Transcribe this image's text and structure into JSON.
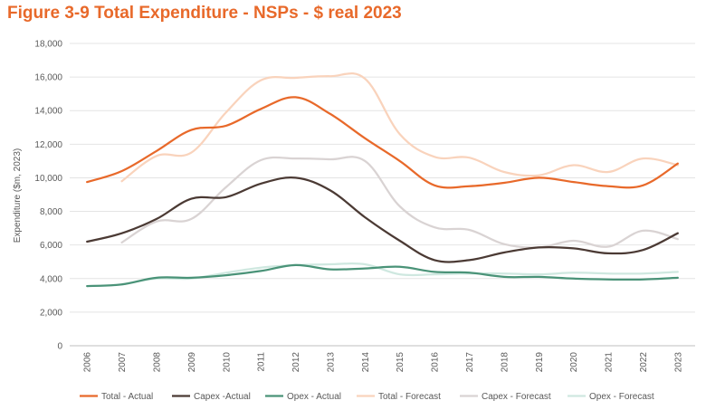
{
  "chart_data": {
    "type": "line",
    "title": "Figure 3-9 Total Expenditure - NSPs - $ real 2023",
    "xlabel": "",
    "ylabel": "Expenditure ($m, 2023)",
    "ylim": [
      0,
      18000
    ],
    "yticks": [
      0,
      2000,
      4000,
      6000,
      8000,
      10000,
      12000,
      14000,
      16000,
      18000
    ],
    "ytick_labels": [
      "0",
      "2,000",
      "4,000",
      "6,000",
      "8,000",
      "10,000",
      "12,000",
      "14,000",
      "16,000",
      "18,000"
    ],
    "grid": true,
    "legend_position": "bottom",
    "categories": [
      "2006",
      "2007",
      "2008",
      "2009",
      "2010",
      "2011",
      "2012",
      "2013",
      "2014",
      "2015",
      "2016",
      "2017",
      "2018",
      "2019",
      "2020",
      "2021",
      "2022",
      "2023"
    ],
    "series": [
      {
        "name": "Total - Forecast",
        "color": "#f9d3bc",
        "values": [
          null,
          9800,
          11300,
          11500,
          13900,
          15800,
          15950,
          16050,
          15900,
          12600,
          11250,
          11200,
          10350,
          10150,
          10750,
          10350,
          11150,
          10750
        ]
      },
      {
        "name": "Capex - Forecast",
        "color": "#d9d3d3",
        "values": [
          null,
          6150,
          7400,
          7550,
          9450,
          11050,
          11150,
          11100,
          11000,
          8300,
          7050,
          6900,
          6050,
          5850,
          6250,
          5900,
          6850,
          6350
        ]
      },
      {
        "name": "Opex - Forecast",
        "color": "#cfe8e0",
        "values": [
          null,
          3650,
          4000,
          4000,
          4350,
          4650,
          4800,
          4850,
          4850,
          4250,
          4250,
          4300,
          4300,
          4250,
          4350,
          4300,
          4300,
          4400
        ]
      },
      {
        "name": "Total - Actual",
        "color": "#e8692a",
        "values": [
          9750,
          10400,
          11600,
          12850,
          13100,
          14100,
          14800,
          13800,
          12350,
          11000,
          9550,
          9500,
          9700,
          10000,
          9750,
          9500,
          9550,
          10850
        ]
      },
      {
        "name": "Capex -Actual",
        "color": "#4b3a34",
        "values": [
          6200,
          6700,
          7550,
          8750,
          8850,
          9650,
          10000,
          9250,
          7650,
          6250,
          5100,
          5100,
          5550,
          5850,
          5800,
          5500,
          5700,
          6700
        ]
      },
      {
        "name": "Opex - Actual",
        "color": "#4a9378",
        "values": [
          3550,
          3650,
          4050,
          4050,
          4200,
          4450,
          4800,
          4550,
          4600,
          4700,
          4400,
          4350,
          4100,
          4100,
          4000,
          3950,
          3950,
          4050
        ]
      }
    ],
    "legend_order": [
      "Total - Actual",
      "Capex -Actual",
      "Opex - Actual",
      "Total - Forecast",
      "Capex - Forecast",
      "Opex - Forecast"
    ]
  }
}
